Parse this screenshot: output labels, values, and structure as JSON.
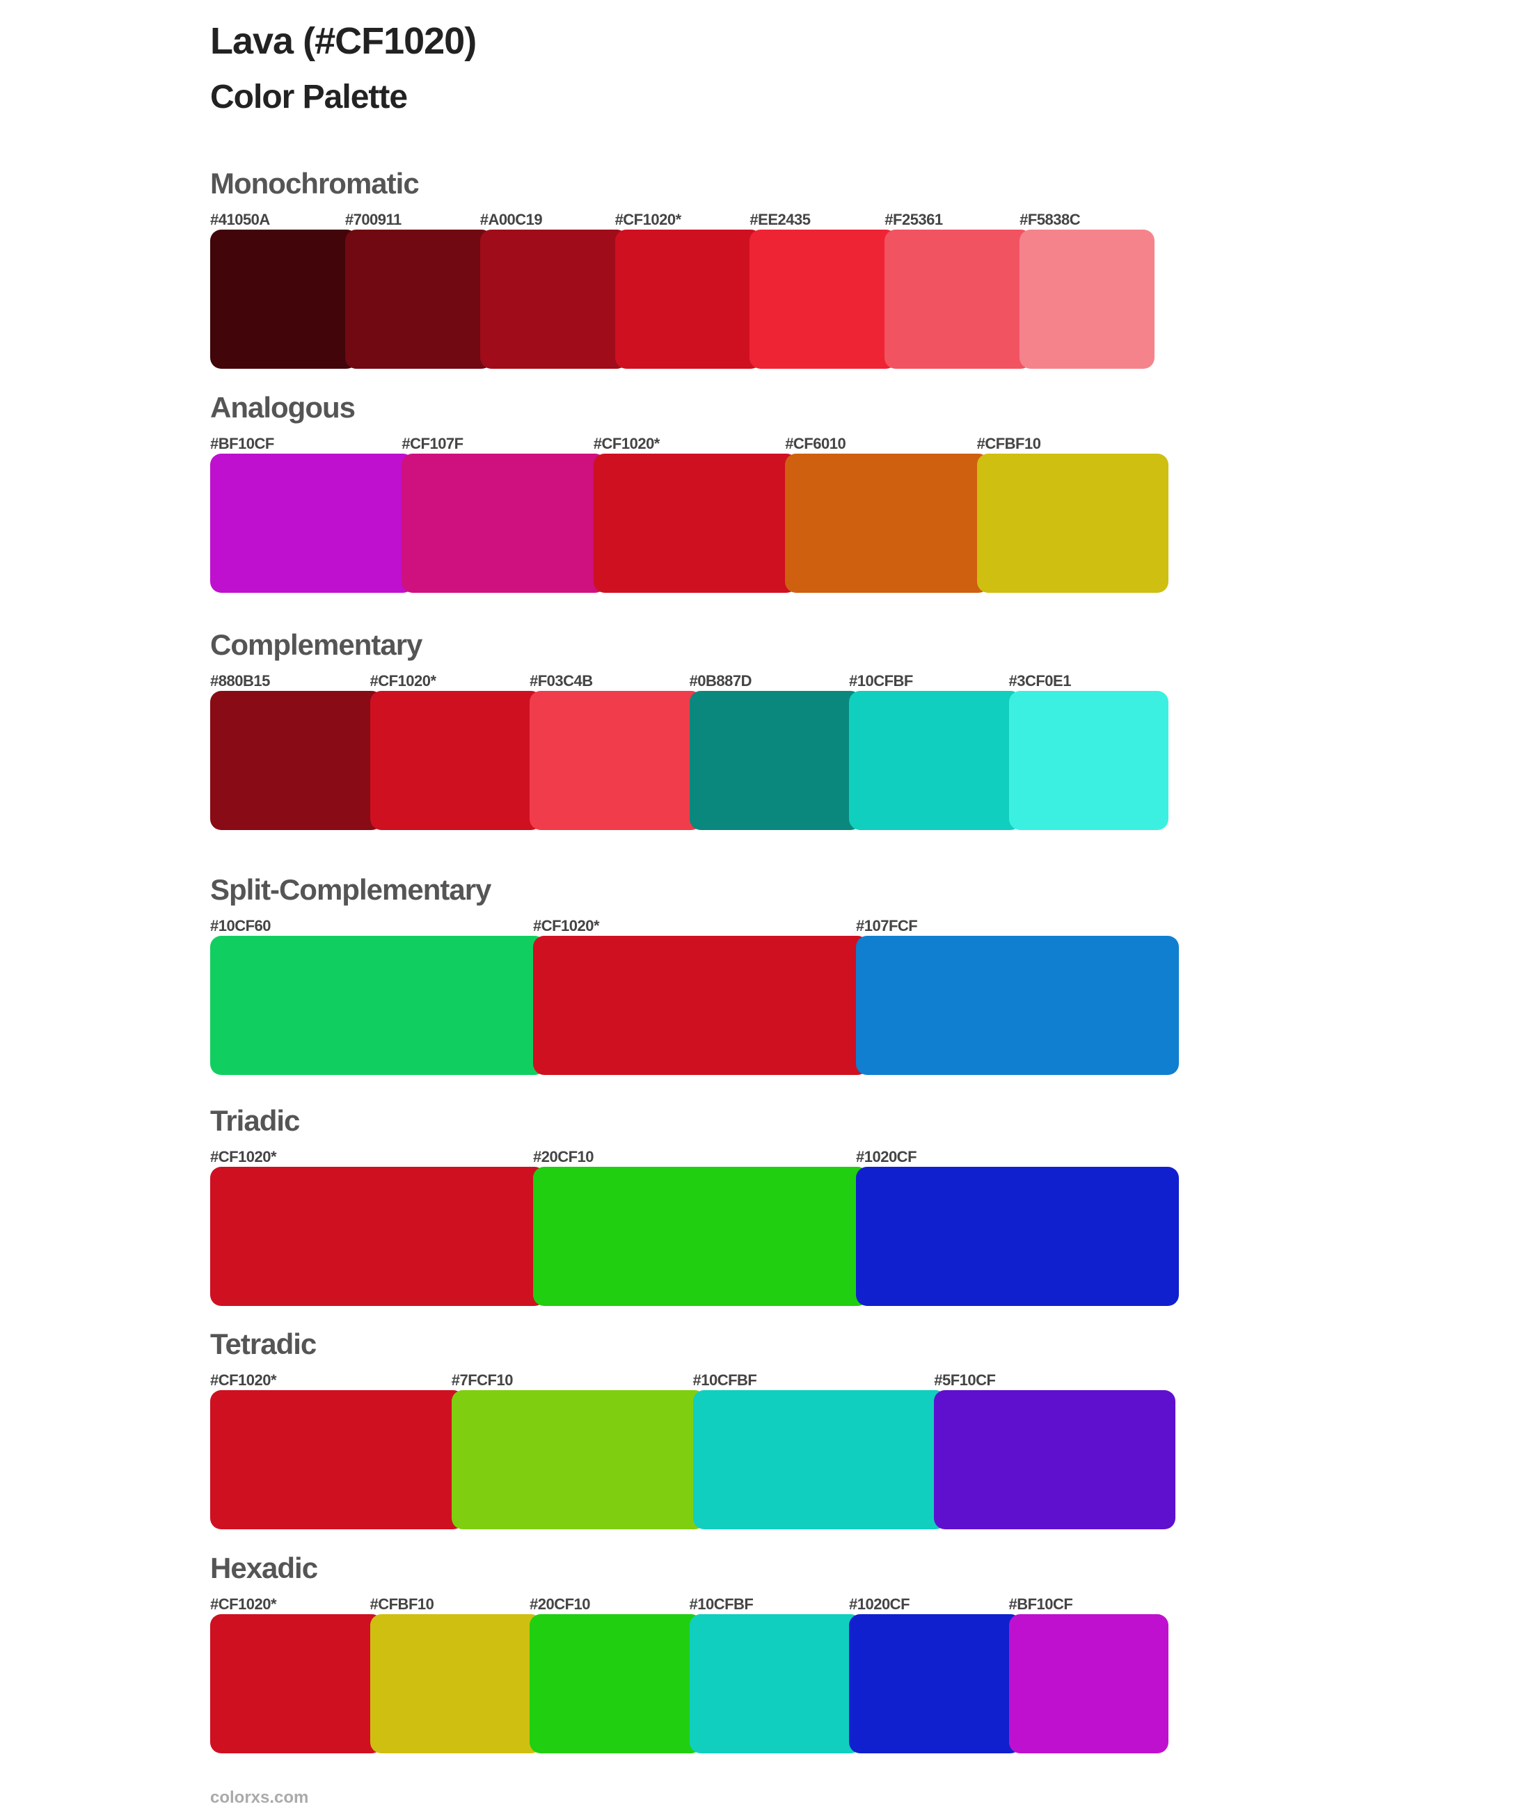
{
  "title": "Lava (#CF1020)",
  "subtitle": "Color Palette",
  "sections": [
    {
      "name": "Monochromatic",
      "swatches": [
        {
          "label": "#41050A",
          "color": "#41050A"
        },
        {
          "label": "#700911",
          "color": "#700911"
        },
        {
          "label": "#A00C19",
          "color": "#A00C19"
        },
        {
          "label": "#CF1020*",
          "color": "#CF1020"
        },
        {
          "label": "#EE2435",
          "color": "#EE2435"
        },
        {
          "label": "#F25361",
          "color": "#F25361"
        },
        {
          "label": "#F5838C",
          "color": "#F5838C"
        }
      ]
    },
    {
      "name": "Analogous",
      "swatches": [
        {
          "label": "#BF10CF",
          "color": "#BF10CF"
        },
        {
          "label": "#CF107F",
          "color": "#CF107F"
        },
        {
          "label": "#CF1020*",
          "color": "#CF1020"
        },
        {
          "label": "#CF6010",
          "color": "#CF6010"
        },
        {
          "label": "#CFBF10",
          "color": "#CFBF10"
        }
      ]
    },
    {
      "name": "Complementary",
      "swatches": [
        {
          "label": "#880B15",
          "color": "#880B15"
        },
        {
          "label": "#CF1020*",
          "color": "#CF1020"
        },
        {
          "label": "#F03C4B",
          "color": "#F03C4B"
        },
        {
          "label": "#0B887D",
          "color": "#0B887D"
        },
        {
          "label": "#10CFBF",
          "color": "#10CFBF"
        },
        {
          "label": "#3CF0E1",
          "color": "#3CF0E1"
        }
      ]
    },
    {
      "name": "Split-Complementary",
      "swatches": [
        {
          "label": "#10CF60",
          "color": "#10CF60"
        },
        {
          "label": "#CF1020*",
          "color": "#CF1020"
        },
        {
          "label": "#107FCF",
          "color": "#107FCF"
        }
      ]
    },
    {
      "name": "Triadic",
      "swatches": [
        {
          "label": "#CF1020*",
          "color": "#CF1020"
        },
        {
          "label": "#20CF10",
          "color": "#20CF10"
        },
        {
          "label": "#1020CF",
          "color": "#1020CF"
        }
      ]
    },
    {
      "name": "Tetradic",
      "swatches": [
        {
          "label": "#CF1020*",
          "color": "#CF1020"
        },
        {
          "label": "#7FCF10",
          "color": "#7FCF10"
        },
        {
          "label": "#10CFBF",
          "color": "#10CFBF"
        },
        {
          "label": "#5F10CF",
          "color": "#5F10CF"
        }
      ]
    },
    {
      "name": "Hexadic",
      "swatches": [
        {
          "label": "#CF1020*",
          "color": "#CF1020"
        },
        {
          "label": "#CFBF10",
          "color": "#CFBF10"
        },
        {
          "label": "#20CF10",
          "color": "#20CF10"
        },
        {
          "label": "#10CFBF",
          "color": "#10CFBF"
        },
        {
          "label": "#1020CF",
          "color": "#1020CF"
        },
        {
          "label": "#BF10CF",
          "color": "#BF10CF"
        }
      ]
    }
  ],
  "footer": "colorxs.com"
}
